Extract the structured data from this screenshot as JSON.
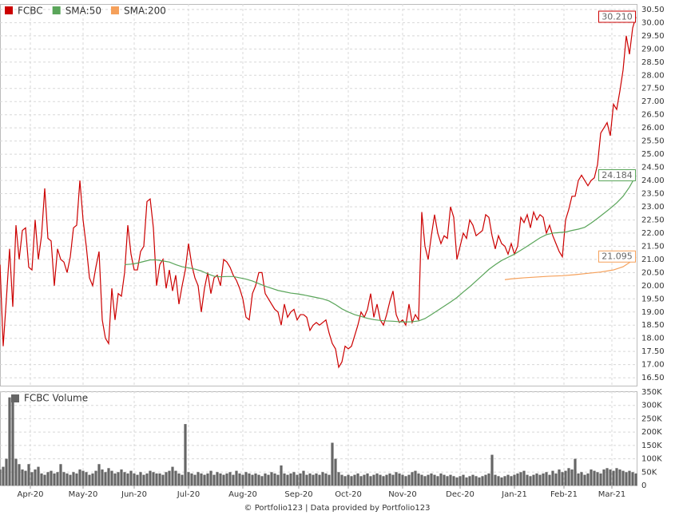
{
  "chart_data": [
    {
      "type": "line",
      "xlim": [
        0,
        199.5
      ],
      "ylim": [
        16.2,
        30.71
      ],
      "grid": true,
      "legend": "top-left",
      "yticks": [
        {
          "value": 16.5,
          "label": "16.50"
        },
        {
          "value": 17,
          "label": "17.00"
        },
        {
          "value": 17.5,
          "label": "17.50"
        },
        {
          "value": 18,
          "label": "18.00"
        },
        {
          "value": 18.5,
          "label": "18.50"
        },
        {
          "value": 19,
          "label": "19.00"
        },
        {
          "value": 19.5,
          "label": "19.50"
        },
        {
          "value": 20,
          "label": "20.00"
        },
        {
          "value": 20.5,
          "label": "20.50"
        },
        {
          "value": 21,
          "label": "21.00"
        },
        {
          "value": 21.5,
          "label": "21.50"
        },
        {
          "value": 22,
          "label": "22.00"
        },
        {
          "value": 22.5,
          "label": "22.50"
        },
        {
          "value": 23,
          "label": "23.00"
        },
        {
          "value": 23.5,
          "label": "23.50"
        },
        {
          "value": 24,
          "label": "24.00"
        },
        {
          "value": 24.5,
          "label": "24.50"
        },
        {
          "value": 25,
          "label": "25.00"
        },
        {
          "value": 25.5,
          "label": "25.50"
        },
        {
          "value": 26,
          "label": "26.00"
        },
        {
          "value": 26.5,
          "label": "26.50"
        },
        {
          "value": 27,
          "label": "27.00"
        },
        {
          "value": 27.5,
          "label": "27.50"
        },
        {
          "value": 28,
          "label": "28.00"
        },
        {
          "value": 28.5,
          "label": "28.50"
        },
        {
          "value": 29,
          "label": "29.00"
        },
        {
          "value": 29.5,
          "label": "29.50"
        },
        {
          "value": 30,
          "label": "30.00"
        },
        {
          "value": 30.5,
          "label": "30.50"
        }
      ],
      "annotations": [
        {
          "value": 30.21,
          "label": "30.210"
        }
      ],
      "series": [
        {
          "name": "FCBC",
          "color": "#cc0000",
          "values": [
            20.8,
            17.7,
            19.5,
            21.4,
            19.2,
            22.3,
            21.0,
            22.1,
            22.2,
            20.7,
            20.6,
            22.5,
            21.0,
            21.9,
            23.7,
            21.8,
            21.7,
            20.0,
            21.4,
            21.0,
            20.9,
            20.5,
            21.1,
            22.2,
            22.3,
            24.0,
            22.5,
            21.5,
            20.3,
            20.0,
            20.7,
            21.3,
            18.7,
            18.0,
            17.8,
            19.9,
            18.7,
            19.7,
            19.6,
            20.5,
            22.3,
            21.2,
            20.6,
            20.6,
            21.3,
            21.5,
            23.2,
            23.3,
            22.2,
            20.0,
            20.8,
            21.0,
            19.9,
            20.6,
            19.8,
            20.4,
            19.3,
            20.0,
            20.6,
            21.6,
            20.8,
            20.3,
            20.0,
            19.0,
            19.9,
            20.5,
            19.7,
            20.3,
            20.4,
            20.0,
            21.0,
            20.9,
            20.7,
            20.4,
            20.2,
            19.9,
            19.5,
            18.8,
            18.7,
            19.7,
            20.0,
            20.5,
            20.5,
            19.7,
            19.5,
            19.3,
            19.1,
            19.0,
            18.5,
            19.3,
            18.8,
            19.0,
            19.1,
            18.7,
            18.9,
            18.9,
            18.8,
            18.3,
            18.5,
            18.6,
            18.5,
            18.6,
            18.7,
            18.2,
            17.8,
            17.6,
            16.9,
            17.1,
            17.7,
            17.6,
            17.7,
            18.1,
            18.5,
            19.0,
            18.8,
            19.1,
            19.7,
            18.8,
            19.3,
            18.7,
            18.5,
            18.9,
            19.4,
            19.8,
            18.9,
            18.6,
            18.7,
            18.5,
            19.3,
            18.6,
            18.9,
            18.7,
            22.8,
            21.5,
            21.0,
            21.9,
            22.7,
            22.0,
            21.6,
            21.9,
            21.8,
            23.0,
            22.6,
            21.0,
            21.5,
            22.0,
            21.8,
            22.5,
            22.3,
            21.9,
            22.0,
            22.1,
            22.7,
            22.6,
            21.9,
            21.4,
            21.9,
            21.6,
            21.5,
            21.2,
            21.6,
            21.2,
            21.5,
            22.6,
            22.4,
            22.7,
            22.2,
            22.8,
            22.5,
            22.7,
            22.6,
            22.0,
            22.3,
            21.9,
            21.6,
            21.3,
            21.1,
            22.5,
            22.9,
            23.4,
            23.4,
            24.0,
            24.2,
            24.0,
            23.8,
            24.0,
            24.1,
            24.6,
            25.8,
            26.0,
            26.2,
            25.7,
            26.9,
            26.7,
            27.4,
            28.2,
            29.5,
            28.8,
            29.8,
            30.21
          ]
        },
        {
          "name": "SMA:50",
          "color": "#5aa55a",
          "x": [
            39,
            41,
            43,
            45,
            47,
            49,
            51,
            53,
            55,
            57,
            59,
            61,
            63,
            65,
            67,
            69,
            71,
            73,
            75,
            77,
            79,
            81,
            83,
            85,
            87,
            89,
            91,
            93,
            95,
            97,
            99,
            101,
            103,
            105,
            107,
            109,
            111,
            113,
            115,
            117,
            119,
            121,
            123,
            125,
            127,
            129,
            131,
            133,
            135,
            137,
            139,
            141,
            143,
            145,
            147,
            149,
            151,
            153,
            155,
            157,
            159,
            161,
            163,
            165,
            167,
            169,
            171,
            173,
            175,
            177,
            179,
            181,
            183,
            185,
            187,
            189,
            191,
            193,
            195,
            197,
            199
          ],
          "values": [
            20.8,
            20.82,
            20.86,
            20.92,
            20.98,
            20.98,
            20.94,
            20.9,
            20.8,
            20.72,
            20.68,
            20.63,
            20.56,
            20.45,
            20.36,
            20.34,
            20.35,
            20.35,
            20.3,
            20.25,
            20.18,
            20.08,
            19.98,
            19.9,
            19.82,
            19.77,
            19.72,
            19.69,
            19.65,
            19.6,
            19.55,
            19.5,
            19.42,
            19.28,
            19.12,
            19.0,
            18.9,
            18.83,
            18.76,
            18.71,
            18.68,
            18.66,
            18.65,
            18.63,
            18.62,
            18.63,
            18.66,
            18.75,
            18.9,
            19.06,
            19.22,
            19.38,
            19.55,
            19.76,
            19.96,
            20.18,
            20.4,
            20.62,
            20.8,
            20.96,
            21.08,
            21.2,
            21.35,
            21.5,
            21.66,
            21.82,
            21.94,
            22.0,
            22.02,
            22.04,
            22.1,
            22.15,
            22.22,
            22.38,
            22.56,
            22.75,
            22.94,
            23.15,
            23.4,
            23.75,
            24.184
          ]
        },
        {
          "name": "SMA:200",
          "color": "#f5a05a",
          "x": [
            158,
            160,
            164,
            168,
            172,
            176,
            180,
            184,
            188,
            192,
            195,
            197,
            199
          ],
          "values": [
            20.23,
            20.26,
            20.3,
            20.33,
            20.36,
            20.38,
            20.42,
            20.47,
            20.52,
            20.6,
            20.72,
            20.88,
            21.095
          ]
        }
      ]
    },
    {
      "type": "bar",
      "xlim": [
        0,
        199.5
      ],
      "ylim": [
        0,
        353000
      ],
      "grid": true,
      "xticks": [
        {
          "value": 9.5,
          "label": "Apr-20"
        },
        {
          "value": 26,
          "label": "May-20"
        },
        {
          "value": 42,
          "label": "Jun-20"
        },
        {
          "value": 59,
          "label": "Jul-20"
        },
        {
          "value": 76,
          "label": "Aug-20"
        },
        {
          "value": 93.5,
          "label": "Sep-20"
        },
        {
          "value": 109,
          "label": "Oct-20"
        },
        {
          "value": 126,
          "label": "Nov-20"
        },
        {
          "value": 144,
          "label": "Dec-20"
        },
        {
          "value": 161,
          "label": "Jan-21"
        },
        {
          "value": 176.5,
          "label": "Feb-21"
        },
        {
          "value": 191.5,
          "label": "Mar-21"
        }
      ],
      "yticks": [
        0,
        {
          "value": 50000,
          "label": "50K"
        },
        {
          "value": 100000,
          "label": "100K"
        },
        {
          "value": 150000,
          "label": "150K"
        },
        {
          "value": 200000,
          "label": "200K"
        },
        {
          "value": 250000,
          "label": "250K"
        },
        {
          "value": 300000,
          "label": "300K"
        },
        {
          "value": 350000,
          "label": "350K"
        }
      ],
      "series": [
        {
          "name": "FCBC Volume",
          "color": "#666666",
          "values": [
            60000,
            70000,
            100000,
            330000,
            330000,
            100000,
            80000,
            60000,
            55000,
            80000,
            50000,
            60000,
            70000,
            45000,
            40000,
            50000,
            55000,
            45000,
            50000,
            80000,
            50000,
            45000,
            40000,
            50000,
            45000,
            60000,
            55000,
            50000,
            40000,
            45000,
            55000,
            80000,
            60000,
            50000,
            65000,
            55000,
            45000,
            50000,
            60000,
            50000,
            45000,
            55000,
            45000,
            40000,
            50000,
            40000,
            45000,
            55000,
            50000,
            45000,
            45000,
            40000,
            50000,
            55000,
            70000,
            55000,
            45000,
            40000,
            230000,
            50000,
            45000,
            40000,
            50000,
            45000,
            40000,
            45000,
            55000,
            40000,
            50000,
            45000,
            40000,
            45000,
            50000,
            40000,
            55000,
            45000,
            40000,
            50000,
            45000,
            40000,
            45000,
            40000,
            35000,
            45000,
            40000,
            50000,
            45000,
            40000,
            75000,
            45000,
            40000,
            45000,
            50000,
            40000,
            45000,
            55000,
            40000,
            45000,
            40000,
            45000,
            40000,
            50000,
            45000,
            40000,
            160000,
            100000,
            50000,
            40000,
            35000,
            40000,
            35000,
            40000,
            45000,
            35000,
            40000,
            45000,
            35000,
            40000,
            45000,
            40000,
            35000,
            40000,
            45000,
            40000,
            50000,
            45000,
            40000,
            35000,
            40000,
            50000,
            55000,
            45000,
            40000,
            35000,
            40000,
            45000,
            40000,
            35000,
            45000,
            40000,
            35000,
            40000,
            35000,
            30000,
            35000,
            40000,
            30000,
            35000,
            40000,
            35000,
            30000,
            35000,
            40000,
            45000,
            115000,
            40000,
            35000,
            30000,
            35000,
            40000,
            35000,
            40000,
            45000,
            50000,
            55000,
            40000,
            35000,
            40000,
            45000,
            40000,
            45000,
            50000,
            40000,
            55000,
            45000,
            60000,
            50000,
            55000,
            65000,
            60000,
            100000,
            45000,
            50000,
            40000,
            45000,
            60000,
            55000,
            50000,
            45000,
            60000,
            65000,
            60000,
            55000,
            65000,
            60000,
            55000,
            50000,
            55000,
            50000,
            45000
          ]
        }
      ]
    }
  ],
  "footer": "© Portfolio123 | Data provided by Portfolio123"
}
